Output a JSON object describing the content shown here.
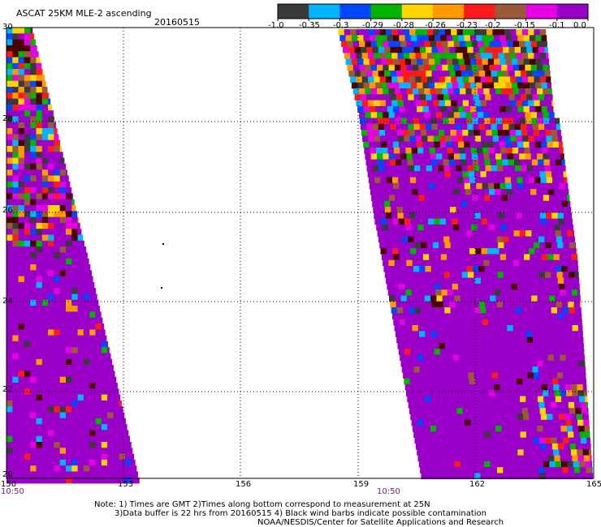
{
  "header": {
    "title": "ASCAT 25KM MLE-2 ascending",
    "date": "20160515"
  },
  "colorbar": {
    "colors": [
      "#3a3a3a",
      "#00b4ff",
      "#0047ff",
      "#00b400",
      "#ffd400",
      "#ff9a00",
      "#ff1a1a",
      "#9a5a3a",
      "#e600e6",
      "#9a00c8"
    ],
    "labels": [
      "-1.0",
      "-0.35",
      "-0.3",
      "-0.29",
      "-0.28",
      "-0.26",
      "-0.23",
      "-0.2",
      "-0.15",
      "-0.1",
      "0.0"
    ]
  },
  "axes": {
    "x_ticks": [
      "150",
      "153",
      "156",
      "159",
      "162",
      "165"
    ],
    "y_ticks": [
      "30",
      "28",
      "26",
      "24",
      "22",
      "20"
    ],
    "time_labels": [
      "10:50",
      "10:50"
    ]
  },
  "swath_colors": {
    "background": "#9a00c8",
    "palette": [
      "#ffd400",
      "#0047ff",
      "#ff1a1a",
      "#e600e6",
      "#ff9a00",
      "#00b400",
      "#9a5a3a",
      "#3a3a3a",
      "#00b4ff",
      "#4b0000"
    ]
  },
  "notes": {
    "line1": "Note: 1) Times are GMT 2)Times along bottom correspond to measurement at 25N",
    "line2": "3)Data buffer is 22 hrs from 20160515 4) Black wind barbs indicate possible contamination",
    "line3": "NOAA/NESDIS/Center for Satellite Applications and Research"
  }
}
